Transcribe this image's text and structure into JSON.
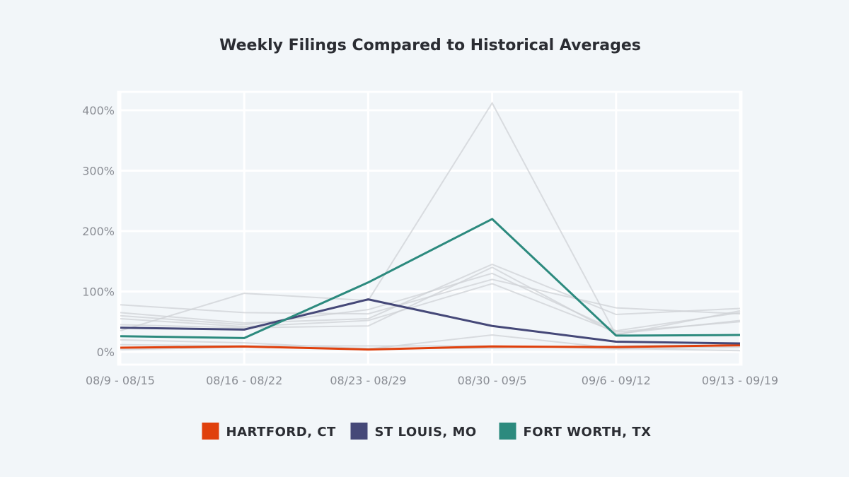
{
  "chart_data": {
    "type": "line",
    "title": "Weekly Filings Compared to Historical Averages",
    "xlabel": "",
    "ylabel": "",
    "categories": [
      "08/9 - 08/15",
      "08/16 - 08/22",
      "08/23 - 08/29",
      "08/30 - 09/5",
      "09/6 - 09/12",
      "09/13 - 09/19"
    ],
    "ylim": [
      -20,
      420
    ],
    "yticks": [
      0,
      100,
      200,
      300,
      400
    ],
    "ytick_labels": [
      "0%",
      "100%",
      "200%",
      "300%",
      "400%"
    ],
    "grid": true,
    "legend_position": "bottom-center",
    "series": [
      {
        "name": "HARTFORD, CT",
        "color": "#e0400c",
        "highlight": true,
        "values": [
          7,
          9,
          4,
          9,
          8,
          11
        ]
      },
      {
        "name": "ST LOUIS, MO",
        "color": "#454878",
        "highlight": true,
        "values": [
          40,
          37,
          87,
          43,
          17,
          14
        ]
      },
      {
        "name": "FORT WORTH, TX",
        "color": "#2c8a7e",
        "highlight": true,
        "values": [
          26,
          23,
          115,
          220,
          27,
          28
        ]
      }
    ],
    "background_series": [
      {
        "values": [
          35,
          97,
          85,
          412,
          28,
          68
        ]
      },
      {
        "values": [
          78,
          65,
          63,
          120,
          73,
          63
        ]
      },
      {
        "values": [
          65,
          48,
          55,
          145,
          62,
          72
        ]
      },
      {
        "values": [
          60,
          45,
          70,
          130,
          35,
          65
        ]
      },
      {
        "values": [
          55,
          42,
          52,
          113,
          33,
          50
        ]
      },
      {
        "values": [
          45,
          40,
          43,
          140,
          30,
          52
        ]
      },
      {
        "values": [
          20,
          15,
          5,
          28,
          6,
          2
        ]
      },
      {
        "values": [
          12,
          10,
          10,
          10,
          5,
          8
        ]
      },
      {
        "values": [
          4,
          8,
          6,
          6,
          10,
          12
        ]
      }
    ],
    "background_color": "#cfd2d6"
  }
}
